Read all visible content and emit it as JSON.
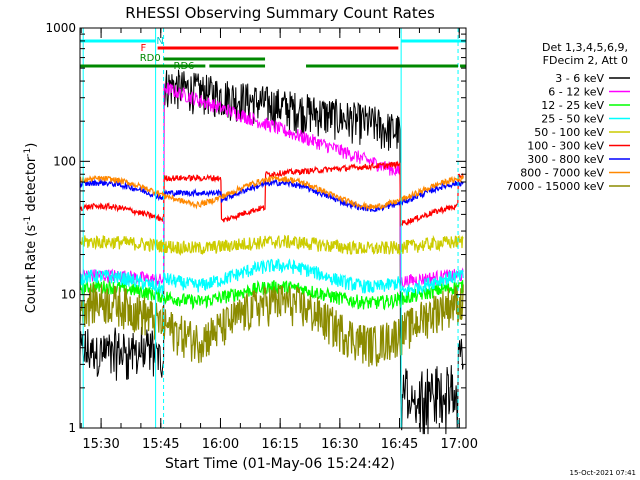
{
  "chart_data": {
    "type": "line",
    "title": "RHESSI Observing Summary Count Rates",
    "xlabel": "Start Time (01-May-06 15:24:42)",
    "ylabel_main": "Count Rate (s",
    "ylabel_sup1": "-1",
    "ylabel_mid": " detector",
    "ylabel_sup2": "-1",
    "ylabel_end": ")",
    "yscale": "log",
    "ylim": [
      1,
      1000
    ],
    "xlim_min": [
      0,
      97
    ],
    "x_tick_labels": [
      "15:30",
      "15:45",
      "16:00",
      "16:15",
      "16:30",
      "16:45",
      "17:00"
    ],
    "x_tick_min": [
      5.3,
      20.3,
      35.3,
      50.3,
      65.3,
      80.3,
      95.3
    ],
    "y_tick_labels": [
      "1",
      "10",
      "100",
      "1000"
    ],
    "y_tick_values": [
      1,
      10,
      100,
      1000
    ],
    "legend_header": [
      "Det 1,3,4,5,6,9,",
      "FDecim 2, Att 0"
    ],
    "legend_position": "right",
    "timestamp": "15-Oct-2021 07:41",
    "flag_labels": {
      "N": "N",
      "F": "F",
      "RD0": "RD0",
      "RD6": "RD6"
    },
    "flags": {
      "night": [
        [
          0,
          19.0
        ],
        [
          80.7,
          97
        ]
      ],
      "flare": [
        [
          19.5,
          80.0
        ]
      ],
      "rd0": [
        [
          0,
          31.5
        ],
        [
          32.5,
          46.5
        ],
        [
          56.8,
          95.0
        ],
        [
          95.5,
          97
        ]
      ],
      "rd6": [
        [
          21.0,
          46.5
        ]
      ]
    },
    "series": [
      {
        "name": "3 - 6 keV",
        "color": "#000000"
      },
      {
        "name": "6 - 12 keV",
        "color": "#ff00ff"
      },
      {
        "name": "12 - 25 keV",
        "color": "#00ff00"
      },
      {
        "name": "25 - 50 keV",
        "color": "#00ffff"
      },
      {
        "name": "50 - 100 keV",
        "color": "#cccc00"
      },
      {
        "name": "100 - 300 keV",
        "color": "#ff0000"
      },
      {
        "name": "300 - 800 keV",
        "color": "#0000ff"
      },
      {
        "name": "800 - 7000 keV",
        "color": "#ff8800"
      },
      {
        "name": "7000 - 15000 keV",
        "color": "#8b8b00"
      }
    ],
    "boundaries_min": [
      18.3,
      21.0,
      35.5,
      46.5,
      80.5,
      95.0
    ]
  }
}
